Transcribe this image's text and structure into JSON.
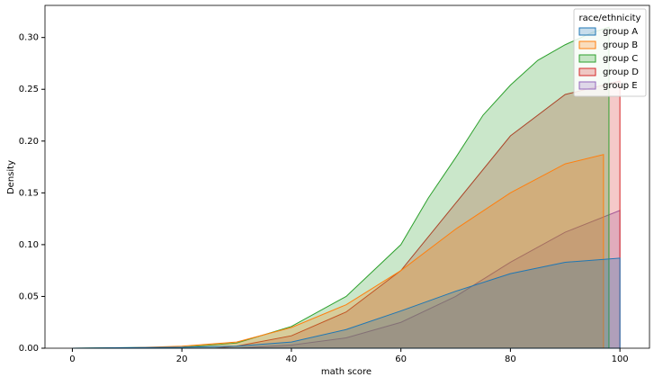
{
  "chart_data": {
    "type": "area",
    "x_label": "math score",
    "y_label": "Density",
    "xlim": [
      -5,
      105.4
    ],
    "ylim": [
      0,
      0.331
    ],
    "xticks": [
      0,
      20,
      40,
      60,
      80,
      100
    ],
    "yticks": [
      {
        "value": 0,
        "label": "0.00"
      },
      {
        "value": 0.05,
        "label": "0.05"
      },
      {
        "value": 0.1,
        "label": "0.10"
      },
      {
        "value": 0.15,
        "label": "0.15"
      },
      {
        "value": 0.2,
        "label": "0.20"
      },
      {
        "value": 0.25,
        "label": "0.25"
      },
      {
        "value": 0.3,
        "label": "0.30"
      }
    ],
    "legend_title": "race/ethnicity",
    "legend_position": "upper right",
    "series": [
      {
        "name": "group A",
        "color": "#1f77b4",
        "x": [
          0,
          20,
          30,
          40,
          50,
          60,
          70,
          80,
          90,
          100
        ],
        "values": [
          0,
          0.001,
          0.002,
          0.006,
          0.018,
          0.036,
          0.055,
          0.072,
          0.083,
          0.087
        ]
      },
      {
        "name": "group B",
        "color": "#ff7f0e",
        "x": [
          8,
          20,
          30,
          40,
          50,
          60,
          70,
          80,
          90,
          97
        ],
        "values": [
          0,
          0.002,
          0.006,
          0.02,
          0.042,
          0.075,
          0.115,
          0.15,
          0.178,
          0.187
        ]
      },
      {
        "name": "group C",
        "color": "#2ca02c",
        "x": [
          0,
          20,
          30,
          40,
          50,
          60,
          65,
          70,
          75,
          80,
          85,
          90,
          95,
          98
        ],
        "values": [
          0,
          0.001,
          0.005,
          0.021,
          0.05,
          0.1,
          0.145,
          0.184,
          0.225,
          0.254,
          0.278,
          0.293,
          0.305,
          0.31
        ]
      },
      {
        "name": "group D",
        "color": "#d62728",
        "x": [
          26,
          30,
          40,
          50,
          60,
          70,
          80,
          90,
          100
        ],
        "values": [
          0,
          0.002,
          0.012,
          0.035,
          0.075,
          0.14,
          0.205,
          0.245,
          0.258
        ]
      },
      {
        "name": "group E",
        "color": "#9467bd",
        "x": [
          30,
          40,
          50,
          60,
          70,
          80,
          90,
          100
        ],
        "values": [
          0,
          0.003,
          0.01,
          0.025,
          0.05,
          0.083,
          0.112,
          0.133
        ]
      }
    ]
  }
}
